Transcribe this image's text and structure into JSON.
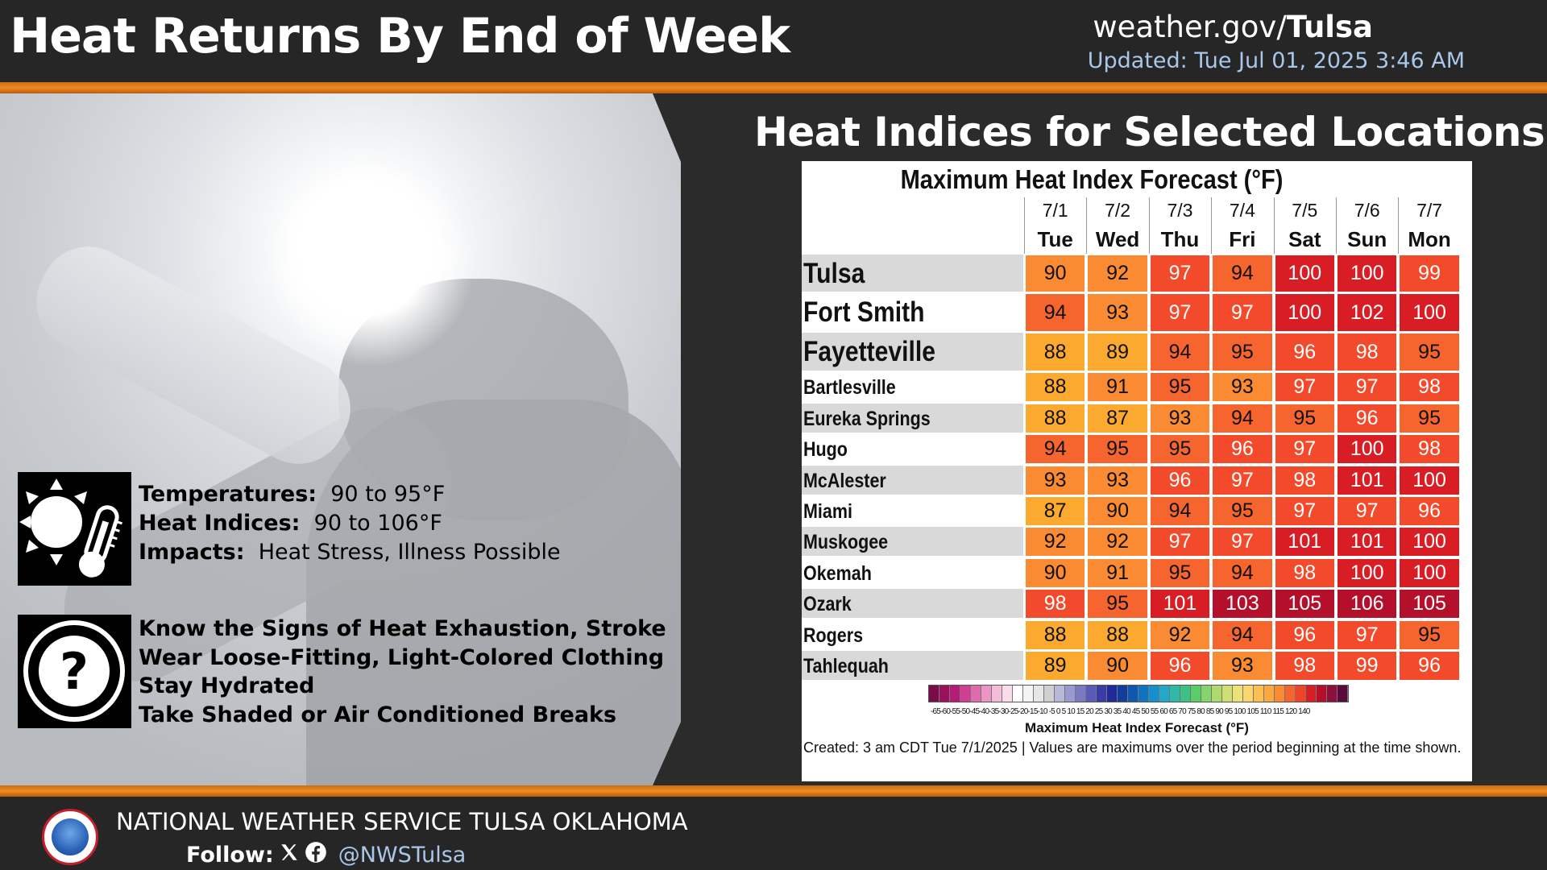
{
  "header": {
    "title": "Heat Returns By End of Week",
    "site_prefix": "weather.gov/",
    "site_office": "Tulsa",
    "updated": "Updated: Tue Jul 01, 2025 3:46 AM"
  },
  "info": {
    "temperatures_label": "Temperatures:",
    "temperatures_value": "90 to 95°F",
    "heat_indices_label": "Heat Indices:",
    "heat_indices_value": "90 to 106°F",
    "impacts_label": "Impacts:",
    "impacts_value": "Heat Stress, Illness Possible",
    "safety": [
      "Know the Signs of Heat Exhaustion, Stroke",
      "Wear Loose-Fitting, Light-Colored Clothing",
      "Stay Hydrated",
      "Take Shaded or Air Conditioned Breaks"
    ]
  },
  "section_title": "Heat Indices for Selected Locations",
  "table": {
    "heading": "Maximum Heat Index Forecast (°F)",
    "columns": [
      {
        "date": "7/1",
        "day": "Tue"
      },
      {
        "date": "7/2",
        "day": "Wed"
      },
      {
        "date": "7/3",
        "day": "Thu"
      },
      {
        "date": "7/4",
        "day": "Fri"
      },
      {
        "date": "7/5",
        "day": "Sat"
      },
      {
        "date": "7/6",
        "day": "Sun"
      },
      {
        "date": "7/7",
        "day": "Mon"
      }
    ],
    "rows": [
      {
        "name": "Tulsa",
        "values": [
          90,
          92,
          97,
          94,
          100,
          100,
          99
        ]
      },
      {
        "name": "Fort Smith",
        "values": [
          94,
          93,
          97,
          97,
          100,
          102,
          100
        ]
      },
      {
        "name": "Fayetteville",
        "values": [
          88,
          89,
          94,
          95,
          96,
          98,
          95
        ]
      },
      {
        "name": "Bartlesville",
        "values": [
          88,
          91,
          95,
          93,
          97,
          97,
          98
        ]
      },
      {
        "name": "Eureka Springs",
        "values": [
          88,
          87,
          93,
          94,
          95,
          96,
          95
        ]
      },
      {
        "name": "Hugo",
        "values": [
          94,
          95,
          95,
          96,
          97,
          100,
          98
        ]
      },
      {
        "name": "McAlester",
        "values": [
          93,
          93,
          96,
          97,
          98,
          101,
          100
        ]
      },
      {
        "name": "Miami",
        "values": [
          87,
          90,
          94,
          95,
          97,
          97,
          96
        ]
      },
      {
        "name": "Muskogee",
        "values": [
          92,
          92,
          97,
          97,
          101,
          101,
          100
        ]
      },
      {
        "name": "Okemah",
        "values": [
          90,
          91,
          95,
          94,
          98,
          100,
          100
        ]
      },
      {
        "name": "Ozark",
        "values": [
          98,
          95,
          101,
          103,
          105,
          106,
          105
        ]
      },
      {
        "name": "Rogers",
        "values": [
          88,
          88,
          92,
          94,
          96,
          97,
          95
        ]
      },
      {
        "name": "Tahlequah",
        "values": [
          89,
          90,
          96,
          93,
          98,
          99,
          96
        ]
      }
    ],
    "legend_ticks": "-65-60-55-50-45-40-35-30-25-20-15-10 -5 0 5 10 15 20 25 30 35 40 45 50 55 60 65 70 75 80 85 90 95 100 105 110 115 120 140",
    "legend_title": "Maximum Heat Index Forecast (°F)",
    "created": "Created: 3 am CDT Tue 7/1/2025  |  Values are maximums over the period beginning at the time shown."
  },
  "footer": {
    "office_name": "NATIONAL WEATHER SERVICE TULSA OKLAHOMA",
    "follow_label": "Follow:",
    "handle": "@NWSTulsa"
  },
  "colors": {
    "orange_bar": "#f08b20",
    "cell_87_89": "#fcaa2f",
    "cell_90_93": "#fb8b32",
    "cell_94_95": "#f7652e",
    "cell_96_99": "#f24a2a",
    "cell_100_102": "#d91d25",
    "cell_103_106": "#b5102b",
    "updated_text": "#a9c7e8"
  },
  "icons": [
    "sun-thermometer-icon",
    "question-mark-icon",
    "x-logo-icon",
    "facebook-icon",
    "nws-logo-icon"
  ]
}
